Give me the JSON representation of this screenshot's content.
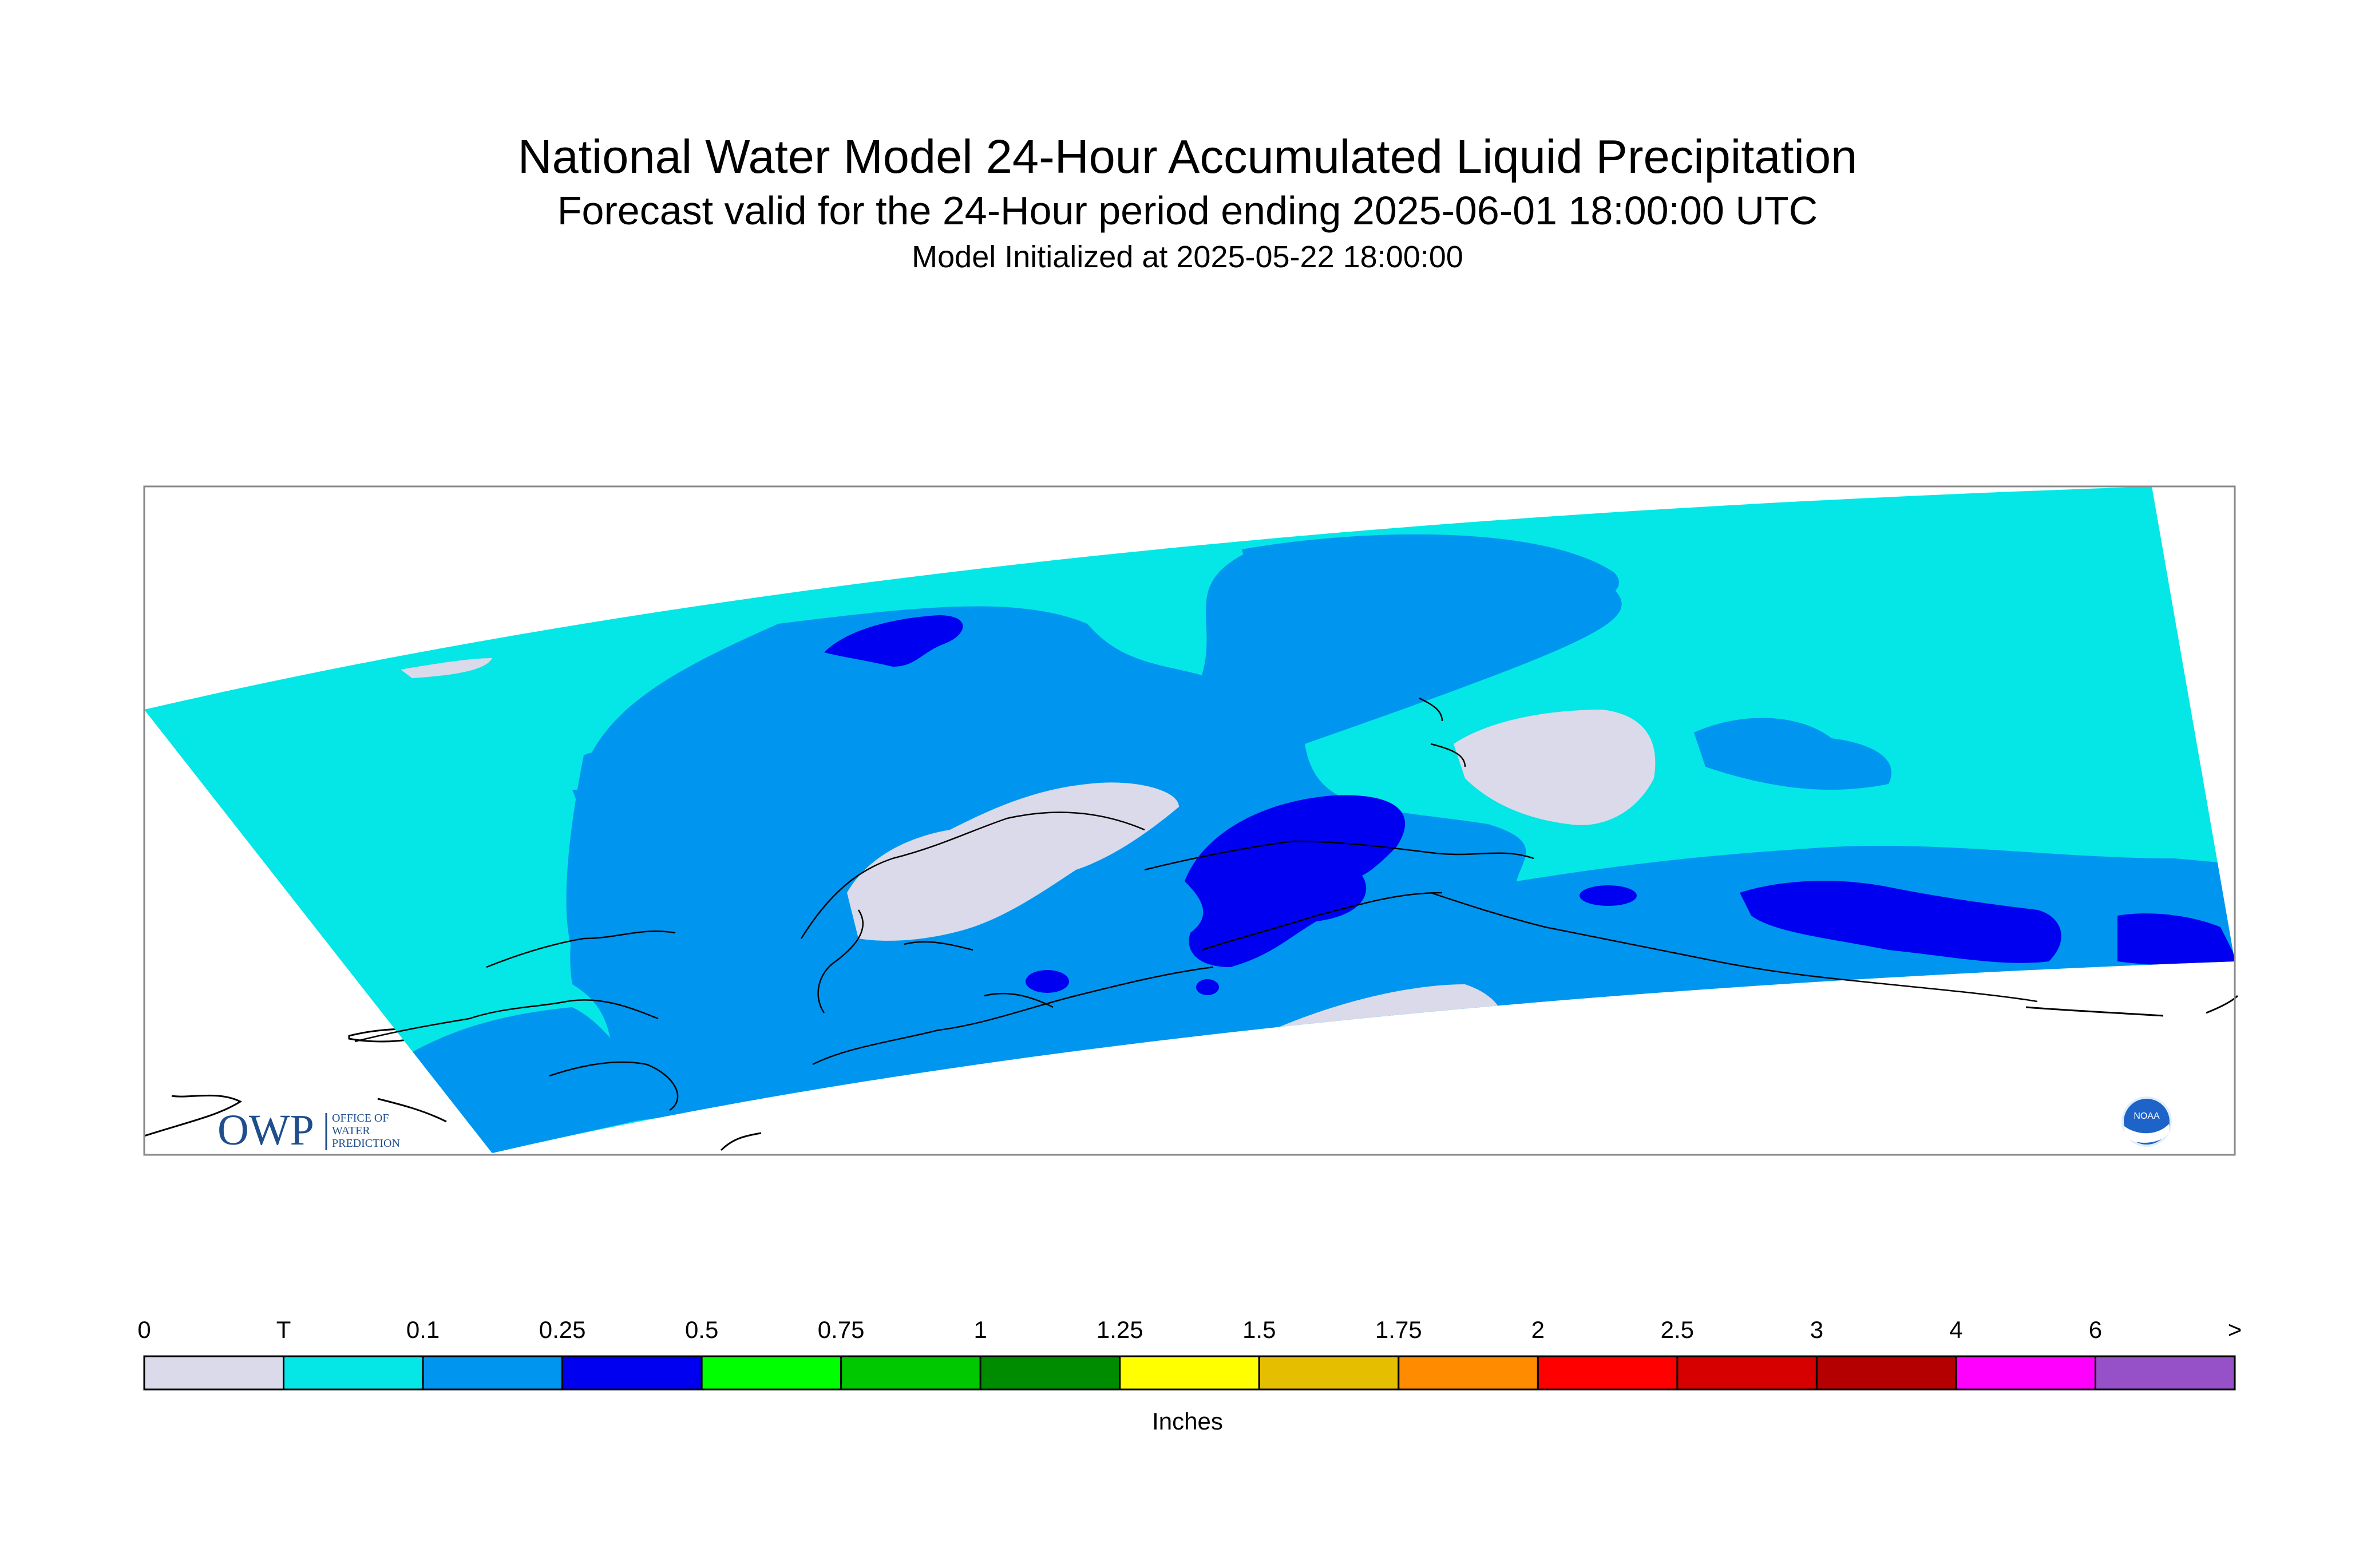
{
  "header": {
    "title": "National Water Model 24-Hour Accumulated Liquid Precipitation",
    "subtitle": "Forecast valid for the 24-Hour period ending 2025-06-01 18:00:00 UTC",
    "init": "Model Initialized at 2025-05-22 18:00:00"
  },
  "logos": {
    "owp_mark": "OWP",
    "owp_text": [
      "OFFICE OF",
      "WATER",
      "PREDICTION"
    ],
    "noaa": "NOAA"
  },
  "legend": {
    "units": "Inches",
    "labels": [
      "0",
      "T",
      "0.1",
      "0.25",
      "0.5",
      "0.75",
      "1",
      "1.25",
      "1.5",
      "1.75",
      "2",
      "2.5",
      "3",
      "4",
      "6",
      ">"
    ],
    "colors": [
      "#dadaea",
      "#05e6e6",
      "#0096ef",
      "#0000f0",
      "#00ff00",
      "#00c800",
      "#008c00",
      "#ffff00",
      "#e6be00",
      "#ff8c00",
      "#ff0000",
      "#d70000",
      "#b40000",
      "#ff00ff",
      "#9650c8"
    ]
  },
  "map_colors": {
    "none": "#dadaea",
    "trace": "#05e6e6",
    "light": "#0096ef",
    "moderate": "#0000f0",
    "coast": "#000000",
    "frame": "#888888"
  }
}
